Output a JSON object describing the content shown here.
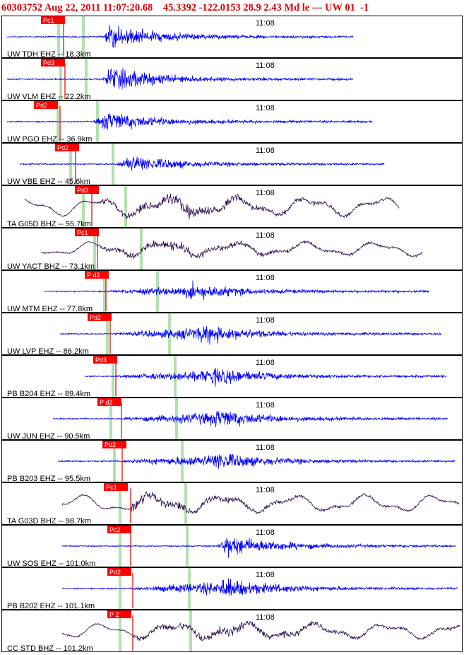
{
  "header": {
    "event_id": "60303752",
    "date": "Aug 22, 2011",
    "time": "11:07:20.68",
    "lat": "45.3392",
    "lon": "-122.0153",
    "depth": "28.9",
    "magnitude": "2.43",
    "mag_type": "Md",
    "flags": "le ---",
    "network": "UW",
    "version": "01",
    "trailing": "-1"
  },
  "colors": {
    "frame": "#000000",
    "high_rate": "#0000ff",
    "broadband": "#2a0a50",
    "pick": "#e00000",
    "pick_label_bg": "#ff0000",
    "marker": "#b4e0b0"
  },
  "time_label": "11:08",
  "traces": [
    {
      "label": "UW TDH EHZ -- 18.3km",
      "pick": "Pc1",
      "kind": "short",
      "amp_level": 0.85
    },
    {
      "label": "UW VLM EHZ -- 22.2km",
      "pick": "Pd3",
      "kind": "short",
      "amp_level": 0.9
    },
    {
      "label": "UW PGO EHZ -- 36.9km",
      "pick": "Pd2",
      "kind": "short",
      "amp_level": 0.75
    },
    {
      "label": "UW VBE EHZ -- 45.6km",
      "pick": "Pd2",
      "kind": "short",
      "amp_level": 0.65
    },
    {
      "label": "TA G05D BHZ -- 55.7km",
      "pick": "Pd3",
      "kind": "broad",
      "amp_level": 0.8
    },
    {
      "label": "UW YACT BHZ -- 73.1km",
      "pick": "Pc1",
      "kind": "broad",
      "amp_level": 0.6
    },
    {
      "label": "UW MTM EHZ -- 77.8km",
      "pick": "P d2",
      "kind": "short",
      "amp_level": 0.6
    },
    {
      "label": "UW LVP EHZ -- 86.2km",
      "pick": "Pd2",
      "kind": "short",
      "amp_level": 0.7
    },
    {
      "label": "PB B204 EHZ -- 89.4km",
      "pick": "Pd3",
      "kind": "short",
      "amp_level": 0.65
    },
    {
      "label": "UW JUN EHZ -- 90.5km",
      "pick": "P d2",
      "kind": "short",
      "amp_level": 0.7
    },
    {
      "label": "PB B203 EHZ -- 95.5km",
      "pick": "Pd2",
      "kind": "short",
      "amp_level": 0.7
    },
    {
      "label": "TA G03D BHZ -- 98.7km",
      "pick": "Pc1",
      "kind": "broad",
      "amp_level": 0.75
    },
    {
      "label": "UW SOS EHZ -- 101.0km",
      "pick": "Pc2",
      "kind": "short",
      "amp_level": 0.8
    },
    {
      "label": "PB B202 EHZ -- 101.1km",
      "pick": "Pd2",
      "kind": "short",
      "amp_level": 0.75
    },
    {
      "label": "CC STD BHZ -- 101.2km",
      "pick": "P 2",
      "kind": "broad",
      "amp_level": 0.65
    }
  ]
}
